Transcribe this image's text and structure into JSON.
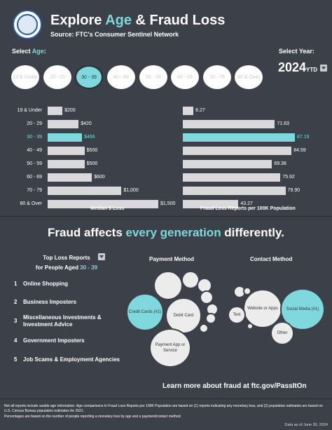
{
  "header": {
    "title_pre": "Explore ",
    "title_accent": "Age",
    "title_post": " & Fraud Loss",
    "subtitle": "Source: FTC's Consumer Sentinel Network"
  },
  "controls": {
    "select_age_pre": "Select ",
    "select_age_accent": "Age",
    "select_age_post": ":",
    "select_year_label": "Select Year:",
    "year_value": "2024",
    "year_suffix": "YTD",
    "ages": [
      "19 & Under",
      "20 - 29",
      "30 - 39",
      "40 - 49",
      "50 - 59",
      "60 - 69",
      "70 - 79",
      "80 & Over"
    ],
    "selected_age": "30 - 39"
  },
  "chart_data": [
    {
      "type": "bar",
      "orientation": "horizontal",
      "title": "Median $ Loss",
      "categories": [
        "19 & Under",
        "20 - 29",
        "30 - 39",
        "40 - 49",
        "50 - 59",
        "60 - 69",
        "70 - 79",
        "80 & Over"
      ],
      "values": [
        200,
        420,
        466,
        500,
        500,
        600,
        1000,
        1500
      ],
      "value_labels": [
        "$200",
        "$420",
        "$466",
        "$500",
        "$500",
        "$600",
        "$1,000",
        "$1,500"
      ],
      "highlight": "30 - 39",
      "xlim": [
        0,
        1500
      ]
    },
    {
      "type": "bar",
      "orientation": "horizontal",
      "title": "Fraud Loss Reports per 100K Population",
      "categories": [
        "19 & Under",
        "20 - 29",
        "30 - 39",
        "40 - 49",
        "50 - 59",
        "60 - 69",
        "70 - 79",
        "80 & Over"
      ],
      "values": [
        8.27,
        71.63,
        87.19,
        84.59,
        69.38,
        75.92,
        79.9,
        43.27
      ],
      "value_labels": [
        "8.27",
        "71.63",
        "87.19",
        "84.59",
        "69.38",
        "75.92",
        "79.90",
        "43.27"
      ],
      "highlight": "30 - 39",
      "xlim": [
        0,
        87.19
      ]
    }
  ],
  "headline": {
    "pre": "Fraud affects ",
    "accent": "every generation",
    "post": " differently."
  },
  "top_reports": {
    "title_line1": "Top Loss Reports",
    "title_line2_pre": "for People Aged ",
    "title_line2_accent": "30 - 39",
    "items": [
      {
        "rank": "1",
        "label": "Online Shopping"
      },
      {
        "rank": "2",
        "label": "Business Imposters"
      },
      {
        "rank": "3",
        "label": "Miscellaneous Investments & Investment Advice"
      },
      {
        "rank": "4",
        "label": "Government Imposters"
      },
      {
        "rank": "5",
        "label": "Job Scams & Employment Agencies"
      }
    ]
  },
  "payment_method": {
    "title": "Payment Method",
    "bubbles": [
      {
        "label": "Credit Cards (#1)",
        "highlight": true
      },
      {
        "label": "Debit Card",
        "highlight": false
      },
      {
        "label": "Payment App or Service",
        "highlight": false
      }
    ]
  },
  "contact_method": {
    "title": "Contact Method",
    "bubbles": [
      {
        "label": "Website or Apps",
        "highlight": false
      },
      {
        "label": "Social Media (#1)",
        "highlight": true
      },
      {
        "label": "Text",
        "highlight": false
      },
      {
        "label": "Other",
        "highlight": false
      }
    ]
  },
  "footer": {
    "learn_more": "Learn more about fraud at ftc.gov/PassItOn",
    "note1": "Not all reports include usable age information.  Age comparisons in Fraud Loss Reports per 100K Population are based on (1) reports indicating any monetary loss, and (2) population estimates are based on U.S. Census Bureau population estimates for 2021.",
    "note2": "Percentages are based on the number of people reporting a monetary loss by age and a payment/contact method.",
    "as_of": "Data as of June 30, 2024"
  },
  "colors": {
    "background": "#3c4048",
    "accent": "#7fd8dd",
    "bar": "#d9d9db"
  }
}
